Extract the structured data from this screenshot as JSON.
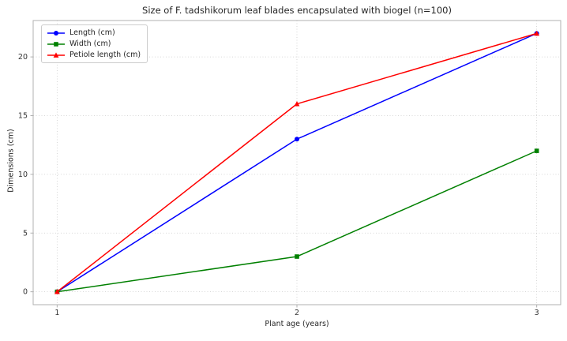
{
  "chart_data": {
    "type": "line",
    "title": "Size of F. tadshikorum leaf blades encapsulated with biogel (n=100)",
    "xlabel": "Plant age (years)",
    "ylabel": "Dimensions (cm)",
    "x": [
      1,
      2,
      3
    ],
    "xticks": [
      "1",
      "2",
      "3"
    ],
    "yticks": [
      0,
      5,
      10,
      15,
      20
    ],
    "xlim": [
      0.9,
      3.1
    ],
    "ylim": [
      -1.1,
      23.1
    ],
    "grid": true,
    "legend_position": "upper left",
    "series": [
      {
        "name": "Length (cm)",
        "color": "#0000ff",
        "marker": "circle",
        "values": [
          0,
          13,
          22
        ]
      },
      {
        "name": "Width (cm)",
        "color": "#008000",
        "marker": "square",
        "values": [
          0,
          3,
          12
        ]
      },
      {
        "name": "Petiole length (cm)",
        "color": "#ff0000",
        "marker": "triangle",
        "values": [
          0,
          16,
          22
        ]
      }
    ],
    "colors": {
      "grid": "#cccccc",
      "spine": "#b0b0b0",
      "tick_label": "#333333",
      "background": "#ffffff"
    }
  }
}
